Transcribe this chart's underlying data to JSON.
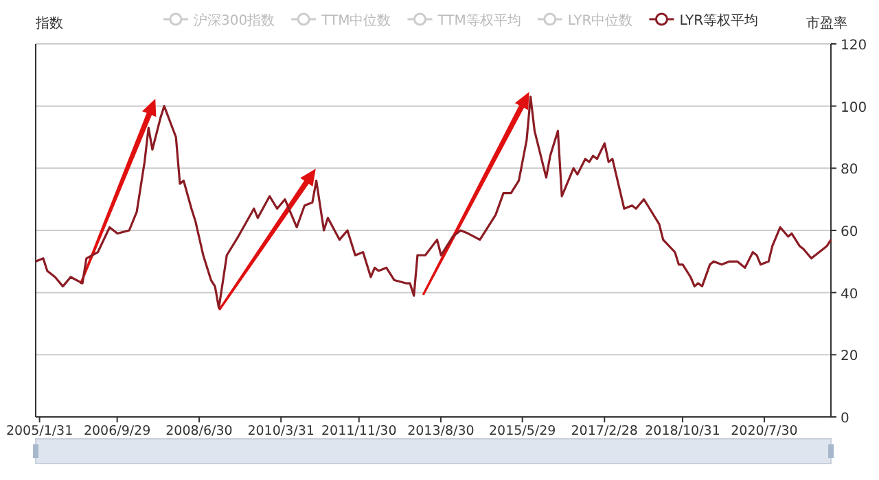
{
  "chart_data": {
    "type": "line",
    "ylabel": "指数",
    "y2label": "市盈率",
    "legend": "top",
    "grid": "y",
    "marker": "none",
    "line_style": "solid",
    "xlim": [
      "2005-01",
      "2022-01"
    ],
    "xticks": [
      {
        "value": "2005-01-31",
        "label": "2005/1/31"
      },
      {
        "value": "2006-09-29",
        "label": "2006/9/29"
      },
      {
        "value": "2008-06-30",
        "label": "2008/6/30"
      },
      {
        "value": "2010-03-31",
        "label": "2010/3/31"
      },
      {
        "value": "2011-11-30",
        "label": "2011/11/30"
      },
      {
        "value": "2013-08-30",
        "label": "2013/8/30"
      },
      {
        "value": "2015-05-29",
        "label": "2015/5/29"
      },
      {
        "value": "2017-02-28",
        "label": "2017/2/28"
      },
      {
        "value": "2018-10-31",
        "label": "2018/10/31"
      },
      {
        "value": "2020-07-30",
        "label": "2020/7/30"
      }
    ],
    "y2lim": [
      0,
      120
    ],
    "y2ticks": [
      0,
      20,
      40,
      60,
      80,
      100,
      120
    ],
    "x": [
      "2005-01",
      "2005-03",
      "2005-04",
      "2005-06",
      "2005-08",
      "2005-10",
      "2006-01",
      "2006-02",
      "2006-05",
      "2006-08",
      "2006-10",
      "2007-01",
      "2007-03",
      "2007-05",
      "2007-06",
      "2007-07",
      "2007-09",
      "2007-10",
      "2008-01",
      "2008-02",
      "2008-03",
      "2008-05",
      "2008-06",
      "2008-08",
      "2008-10",
      "2008-11",
      "2008-12",
      "2009-02",
      "2009-05",
      "2009-09",
      "2009-10",
      "2010-01",
      "2010-03",
      "2010-05",
      "2010-08",
      "2010-10",
      "2010-12",
      "2011-01",
      "2011-03",
      "2011-04",
      "2011-07",
      "2011-09",
      "2011-11",
      "2012-01",
      "2012-03",
      "2012-04",
      "2012-05",
      "2012-07",
      "2012-09",
      "2012-12",
      "2013-01",
      "2013-02",
      "2013-03",
      "2013-05",
      "2013-08",
      "2013-09",
      "2013-12",
      "2014-02",
      "2014-04",
      "2014-07",
      "2014-09",
      "2014-11",
      "2015-01",
      "2015-03",
      "2015-05",
      "2015-07",
      "2015-08",
      "2015-09",
      "2015-12",
      "2016-01",
      "2016-03",
      "2016-04",
      "2016-07",
      "2016-08",
      "2016-10",
      "2016-11",
      "2016-12",
      "2017-01",
      "2017-03",
      "2017-04",
      "2017-05",
      "2017-08",
      "2017-10",
      "2017-11",
      "2018-01",
      "2018-02",
      "2018-05",
      "2018-06",
      "2018-09",
      "2018-10",
      "2018-11",
      "2019-01",
      "2019-02",
      "2019-03",
      "2019-04",
      "2019-06",
      "2019-07",
      "2019-09",
      "2019-11",
      "2020-01",
      "2020-03",
      "2020-05",
      "2020-06",
      "2020-07",
      "2020-09",
      "2020-10",
      "2020-12",
      "2021-02",
      "2021-03",
      "2021-05",
      "2021-06",
      "2021-08",
      "2021-10",
      "2021-12",
      "2022-01"
    ],
    "series": [
      {
        "name": "沪深300指数",
        "color": "#cccccc",
        "values": [
          null,
          null,
          null,
          null,
          null,
          null,
          null,
          null,
          null,
          null,
          null,
          null,
          null,
          null,
          null,
          null,
          null,
          null,
          null,
          null,
          null,
          null,
          null,
          null,
          null,
          null,
          null,
          null,
          null,
          null,
          null,
          null,
          null,
          null,
          null,
          null,
          null,
          null,
          null,
          null,
          null,
          null,
          null,
          null,
          null,
          null,
          null,
          null,
          null,
          null,
          null,
          null,
          null,
          null,
          null,
          null,
          null,
          null,
          null,
          null,
          null,
          null,
          null,
          null,
          null,
          null,
          null,
          null,
          null,
          null,
          null,
          null,
          null,
          null,
          null,
          null,
          null,
          null,
          null,
          null,
          null,
          null,
          null,
          null,
          null,
          null,
          null,
          null,
          null,
          null,
          null,
          null,
          null,
          null,
          null,
          null,
          null,
          null,
          null,
          null,
          null,
          null,
          null,
          null,
          null,
          null,
          null,
          null,
          null,
          null,
          null,
          null,
          null,
          null,
          null
        ]
      },
      {
        "name": "TTM中位数",
        "color": "#cccccc",
        "values": [
          null,
          null,
          null,
          null,
          null,
          null,
          null,
          null,
          null,
          null,
          null,
          null,
          null,
          null,
          null,
          null,
          null,
          null,
          null,
          null,
          null,
          null,
          null,
          null,
          null,
          null,
          null,
          null,
          null,
          null,
          null,
          null,
          null,
          null,
          null,
          null,
          null,
          null,
          null,
          null,
          null,
          null,
          null,
          null,
          null,
          null,
          null,
          null,
          null,
          null,
          null,
          null,
          null,
          null,
          null,
          null,
          null,
          null,
          null,
          null,
          null,
          null,
          null,
          null,
          null,
          null,
          null,
          null,
          null,
          null,
          null,
          null,
          null,
          null,
          null,
          null,
          null,
          null,
          null,
          null,
          null,
          null,
          null,
          null,
          null,
          null,
          null,
          null,
          null,
          null,
          null,
          null,
          null,
          null,
          null,
          null,
          null,
          null,
          null,
          null,
          null,
          null,
          null,
          null,
          null,
          null,
          null,
          null,
          null,
          null,
          null,
          null,
          null,
          null,
          null
        ]
      },
      {
        "name": "TTM等权平均",
        "color": "#cccccc",
        "values": [
          null,
          null,
          null,
          null,
          null,
          null,
          null,
          null,
          null,
          null,
          null,
          null,
          null,
          null,
          null,
          null,
          null,
          null,
          null,
          null,
          null,
          null,
          null,
          null,
          null,
          null,
          null,
          null,
          null,
          null,
          null,
          null,
          null,
          null,
          null,
          null,
          null,
          null,
          null,
          null,
          null,
          null,
          null,
          null,
          null,
          null,
          null,
          null,
          null,
          null,
          null,
          null,
          null,
          null,
          null,
          null,
          null,
          null,
          null,
          null,
          null,
          null,
          null,
          null,
          null,
          null,
          null,
          null,
          null,
          null,
          null,
          null,
          null,
          null,
          null,
          null,
          null,
          null,
          null,
          null,
          null,
          null,
          null,
          null,
          null,
          null,
          null,
          null,
          null,
          null,
          null,
          null,
          null,
          null,
          null,
          null,
          null,
          null,
          null,
          null,
          null,
          null,
          null,
          null,
          null,
          null,
          null,
          null,
          null,
          null,
          null,
          null,
          null,
          null,
          null
        ]
      },
      {
        "name": "LYR中位数",
        "color": "#cccccc",
        "values": [
          null,
          null,
          null,
          null,
          null,
          null,
          null,
          null,
          null,
          null,
          null,
          null,
          null,
          null,
          null,
          null,
          null,
          null,
          null,
          null,
          null,
          null,
          null,
          null,
          null,
          null,
          null,
          null,
          null,
          null,
          null,
          null,
          null,
          null,
          null,
          null,
          null,
          null,
          null,
          null,
          null,
          null,
          null,
          null,
          null,
          null,
          null,
          null,
          null,
          null,
          null,
          null,
          null,
          null,
          null,
          null,
          null,
          null,
          null,
          null,
          null,
          null,
          null,
          null,
          null,
          null,
          null,
          null,
          null,
          null,
          null,
          null,
          null,
          null,
          null,
          null,
          null,
          null,
          null,
          null,
          null,
          null,
          null,
          null,
          null,
          null,
          null,
          null,
          null,
          null,
          null,
          null,
          null,
          null,
          null,
          null,
          null,
          null,
          null,
          null,
          null,
          null,
          null,
          null,
          null,
          null,
          null,
          null,
          null,
          null,
          null,
          null,
          null,
          null,
          null
        ]
      },
      {
        "name": "LYR等权平均",
        "color": "#8b1c24",
        "axis": "y2",
        "values": [
          50,
          51,
          47,
          45,
          42,
          45,
          43,
          51,
          53,
          61,
          59,
          60,
          66,
          82,
          93,
          86,
          96,
          100,
          90,
          75,
          76,
          67,
          63,
          52,
          44,
          42,
          35,
          52,
          58,
          67,
          64,
          71,
          67,
          70,
          61,
          68,
          69,
          76,
          60,
          64,
          57,
          60,
          52,
          53,
          45,
          48,
          47,
          48,
          44,
          43,
          43,
          39,
          52,
          52,
          57,
          52,
          58,
          60,
          59,
          57,
          61,
          65,
          72,
          72,
          76,
          89,
          103,
          92,
          77,
          84,
          92,
          71,
          80,
          78,
          83,
          82,
          84,
          83,
          88,
          82,
          83,
          67,
          68,
          67,
          70,
          68,
          62,
          57,
          53,
          49,
          49,
          45,
          42,
          43,
          42,
          49,
          50,
          49,
          50,
          50,
          48,
          53,
          52,
          49,
          50,
          55,
          61,
          58,
          59,
          55,
          54,
          51,
          53,
          55,
          57
        ]
      }
    ]
  }
}
